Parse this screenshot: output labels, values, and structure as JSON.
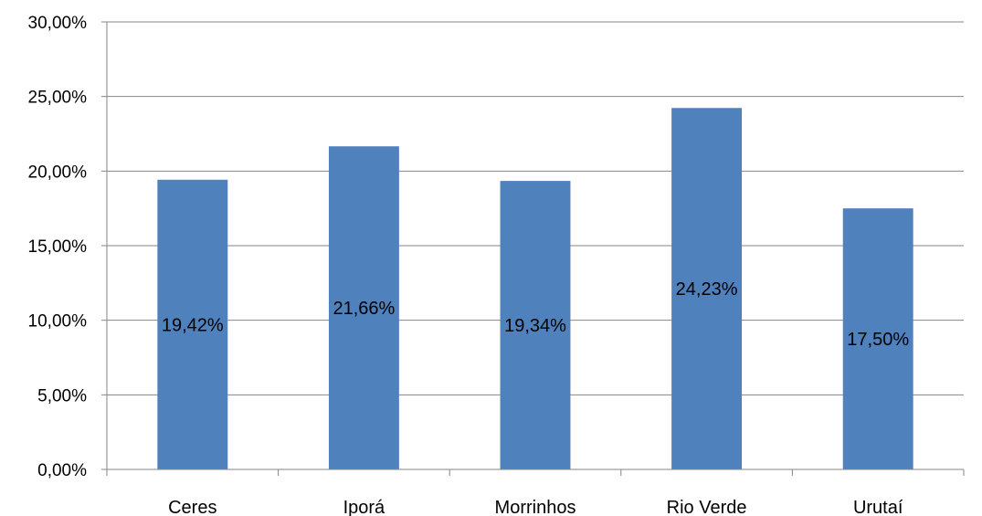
{
  "chart_data": {
    "type": "bar",
    "title": "",
    "xlabel": "",
    "ylabel": "",
    "categories": [
      "Ceres",
      "Iporá",
      "Morrinhos",
      "Rio Verde",
      "Urutaí"
    ],
    "values": [
      19.42,
      21.66,
      19.34,
      24.23,
      17.5
    ],
    "data_labels": [
      "19,42%",
      "21,66%",
      "19,34%",
      "24,23%",
      "17,50%"
    ],
    "ylim": [
      0,
      30
    ],
    "yticks": [
      0,
      5,
      10,
      15,
      20,
      25,
      30
    ],
    "ytick_labels": [
      "0,00%",
      "5,00%",
      "10,00%",
      "15,00%",
      "20,00%",
      "25,00%",
      "30,00%"
    ],
    "grid": true,
    "legend": "none",
    "colors": {
      "bar": "#4F81BD",
      "grid": "#868686",
      "axis": "#868686",
      "text": "#000000"
    }
  }
}
